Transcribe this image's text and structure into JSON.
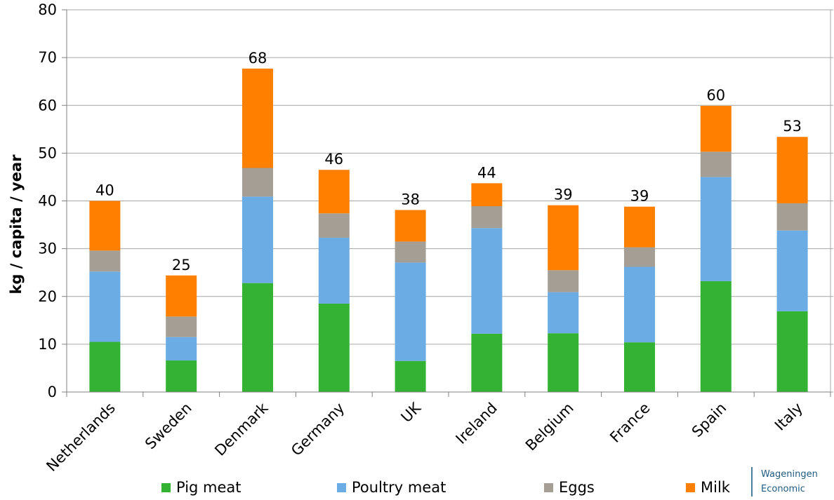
{
  "chart_data": {
    "type": "bar",
    "stacked": true,
    "title": "",
    "xlabel": "",
    "ylabel": "kg / capita / year",
    "ylim": [
      0,
      80
    ],
    "yticks": [
      0,
      10,
      20,
      30,
      40,
      50,
      60,
      70,
      80
    ],
    "grid": true,
    "legend_position": "bottom",
    "categories": [
      "Netherlands",
      "Sweden",
      "Denmark",
      "Germany",
      "UK",
      "Ireland",
      "Belgium",
      "France",
      "Spain",
      "Italy"
    ],
    "series": [
      {
        "name": "Pig meat",
        "color": "#33b233",
        "values": [
          10.5,
          6.6,
          22.8,
          18.5,
          6.5,
          12.2,
          12.3,
          10.4,
          23.2,
          16.9
        ]
      },
      {
        "name": "Poultry meat",
        "color": "#6aace3",
        "values": [
          14.7,
          4.9,
          18.1,
          13.8,
          20.6,
          22.1,
          8.6,
          15.8,
          21.8,
          16.9
        ]
      },
      {
        "name": "Eggs",
        "color": "#a59e95",
        "values": [
          4.4,
          4.3,
          6.0,
          5.1,
          4.4,
          4.6,
          4.6,
          4.1,
          5.3,
          5.7
        ]
      },
      {
        "name": "Milk",
        "color": "#ff7f00",
        "values": [
          10.4,
          8.6,
          20.8,
          9.1,
          6.6,
          4.8,
          13.6,
          8.5,
          9.6,
          13.9
        ]
      }
    ],
    "totals": [
      "40",
      "25",
      "68",
      "46",
      "38",
      "44",
      "39",
      "39",
      "60",
      "53"
    ]
  },
  "logo": {
    "line1": "Wageningen",
    "line2": "Economic"
  }
}
